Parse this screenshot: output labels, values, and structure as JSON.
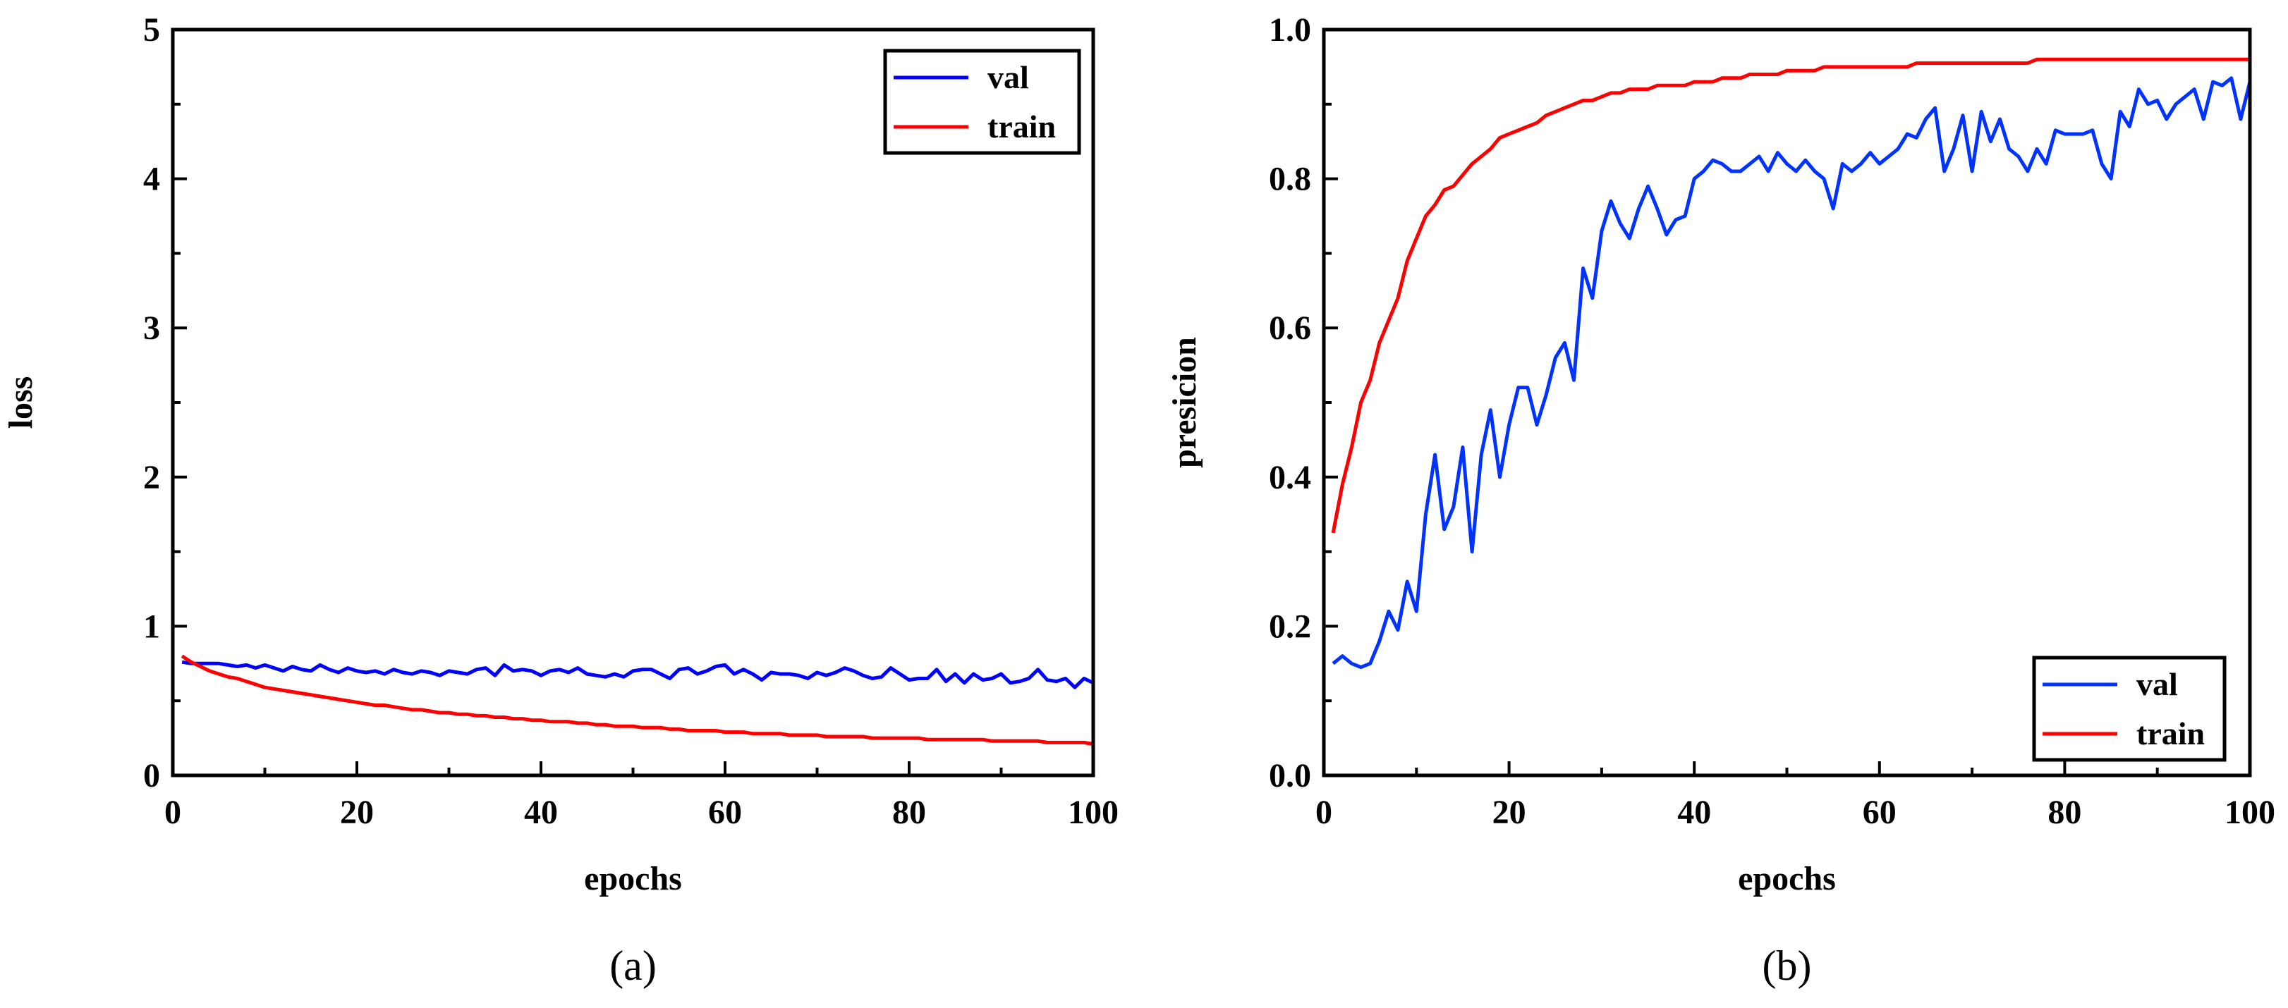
{
  "chart_data": [
    {
      "type": "line",
      "panel_label": "(a)",
      "xlabel": "epochs",
      "ylabel": "loss",
      "xlim": [
        0,
        100
      ],
      "ylim": [
        0,
        5
      ],
      "xticks": [
        0,
        20,
        40,
        60,
        80,
        100
      ],
      "yticks": [
        0,
        1,
        2,
        3,
        4,
        5
      ],
      "xtick_labels": [
        "0",
        "20",
        "40",
        "60",
        "80",
        "100"
      ],
      "ytick_labels": [
        "0",
        "1",
        "2",
        "3",
        "4",
        "5"
      ],
      "legend_position": "top-right",
      "series": [
        {
          "name": "val",
          "color": "#0000ff",
          "x": [
            1,
            2,
            3,
            4,
            5,
            6,
            7,
            8,
            9,
            10,
            11,
            12,
            13,
            14,
            15,
            16,
            17,
            18,
            19,
            20,
            21,
            22,
            23,
            24,
            25,
            26,
            27,
            28,
            29,
            30,
            31,
            32,
            33,
            34,
            35,
            36,
            37,
            38,
            39,
            40,
            41,
            42,
            43,
            44,
            45,
            46,
            47,
            48,
            49,
            50,
            51,
            52,
            53,
            54,
            55,
            56,
            57,
            58,
            59,
            60,
            61,
            62,
            63,
            64,
            65,
            66,
            67,
            68,
            69,
            70,
            71,
            72,
            73,
            74,
            75,
            76,
            77,
            78,
            79,
            80,
            81,
            82,
            83,
            84,
            85,
            86,
            87,
            88,
            89,
            90,
            91,
            92,
            93,
            94,
            95,
            96,
            97,
            98,
            99,
            100
          ],
          "values": [
            0.76,
            0.75,
            0.75,
            0.75,
            0.75,
            0.74,
            0.73,
            0.74,
            0.72,
            0.74,
            0.72,
            0.7,
            0.73,
            0.71,
            0.7,
            0.74,
            0.71,
            0.69,
            0.72,
            0.7,
            0.69,
            0.7,
            0.68,
            0.71,
            0.69,
            0.68,
            0.7,
            0.69,
            0.67,
            0.7,
            0.69,
            0.68,
            0.71,
            0.72,
            0.67,
            0.74,
            0.7,
            0.71,
            0.7,
            0.67,
            0.7,
            0.71,
            0.69,
            0.72,
            0.68,
            0.67,
            0.66,
            0.68,
            0.66,
            0.7,
            0.71,
            0.71,
            0.68,
            0.65,
            0.71,
            0.72,
            0.68,
            0.7,
            0.73,
            0.74,
            0.68,
            0.71,
            0.68,
            0.64,
            0.69,
            0.68,
            0.68,
            0.67,
            0.65,
            0.69,
            0.67,
            0.69,
            0.72,
            0.7,
            0.67,
            0.65,
            0.66,
            0.72,
            0.68,
            0.64,
            0.65,
            0.65,
            0.71,
            0.63,
            0.68,
            0.62,
            0.68,
            0.64,
            0.65,
            0.68,
            0.62,
            0.63,
            0.65,
            0.71,
            0.64,
            0.63,
            0.65,
            0.59,
            0.65,
            0.62
          ]
        },
        {
          "name": "train",
          "color": "#ff0000",
          "x": [
            1,
            2,
            3,
            4,
            5,
            6,
            7,
            8,
            9,
            10,
            11,
            12,
            13,
            14,
            15,
            16,
            17,
            18,
            19,
            20,
            21,
            22,
            23,
            24,
            25,
            26,
            27,
            28,
            29,
            30,
            31,
            32,
            33,
            34,
            35,
            36,
            37,
            38,
            39,
            40,
            41,
            42,
            43,
            44,
            45,
            46,
            47,
            48,
            49,
            50,
            51,
            52,
            53,
            54,
            55,
            56,
            57,
            58,
            59,
            60,
            61,
            62,
            63,
            64,
            65,
            66,
            67,
            68,
            69,
            70,
            71,
            72,
            73,
            74,
            75,
            76,
            77,
            78,
            79,
            80,
            81,
            82,
            83,
            84,
            85,
            86,
            87,
            88,
            89,
            90,
            91,
            92,
            93,
            94,
            95,
            96,
            97,
            98,
            99,
            100
          ],
          "values": [
            0.8,
            0.76,
            0.73,
            0.7,
            0.68,
            0.66,
            0.65,
            0.63,
            0.61,
            0.59,
            0.58,
            0.57,
            0.56,
            0.55,
            0.54,
            0.53,
            0.52,
            0.51,
            0.5,
            0.49,
            0.48,
            0.47,
            0.47,
            0.46,
            0.45,
            0.44,
            0.44,
            0.43,
            0.42,
            0.42,
            0.41,
            0.41,
            0.4,
            0.4,
            0.39,
            0.39,
            0.38,
            0.38,
            0.37,
            0.37,
            0.36,
            0.36,
            0.36,
            0.35,
            0.35,
            0.34,
            0.34,
            0.33,
            0.33,
            0.33,
            0.32,
            0.32,
            0.32,
            0.31,
            0.31,
            0.3,
            0.3,
            0.3,
            0.3,
            0.29,
            0.29,
            0.29,
            0.28,
            0.28,
            0.28,
            0.28,
            0.27,
            0.27,
            0.27,
            0.27,
            0.26,
            0.26,
            0.26,
            0.26,
            0.26,
            0.25,
            0.25,
            0.25,
            0.25,
            0.25,
            0.25,
            0.24,
            0.24,
            0.24,
            0.24,
            0.24,
            0.24,
            0.24,
            0.23,
            0.23,
            0.23,
            0.23,
            0.23,
            0.23,
            0.22,
            0.22,
            0.22,
            0.22,
            0.22,
            0.21
          ]
        }
      ]
    },
    {
      "type": "line",
      "panel_label": "(b)",
      "xlabel": "epochs",
      "ylabel": "presicion",
      "xlim": [
        0,
        100
      ],
      "ylim": [
        0,
        1
      ],
      "xticks": [
        0,
        20,
        40,
        60,
        80,
        100
      ],
      "yticks": [
        0,
        0.2,
        0.4,
        0.6,
        0.8,
        1.0
      ],
      "xtick_labels": [
        "0",
        "20",
        "40",
        "60",
        "80",
        "100"
      ],
      "ytick_labels": [
        "0.0",
        "0.2",
        "0.4",
        "0.6",
        "0.8",
        "1.0"
      ],
      "legend_position": "bottom-right",
      "series": [
        {
          "name": "val",
          "color": "#0033ff",
          "x": [
            1,
            2,
            3,
            4,
            5,
            6,
            7,
            8,
            9,
            10,
            11,
            12,
            13,
            14,
            15,
            16,
            17,
            18,
            19,
            20,
            21,
            22,
            23,
            24,
            25,
            26,
            27,
            28,
            29,
            30,
            31,
            32,
            33,
            34,
            35,
            36,
            37,
            38,
            39,
            40,
            41,
            42,
            43,
            44,
            45,
            46,
            47,
            48,
            49,
            50,
            51,
            52,
            53,
            54,
            55,
            56,
            57,
            58,
            59,
            60,
            61,
            62,
            63,
            64,
            65,
            66,
            67,
            68,
            69,
            70,
            71,
            72,
            73,
            74,
            75,
            76,
            77,
            78,
            79,
            80,
            81,
            82,
            83,
            84,
            85,
            86,
            87,
            88,
            89,
            90,
            91,
            92,
            93,
            94,
            95,
            96,
            97,
            98,
            99,
            100
          ],
          "values": [
            0.15,
            0.16,
            0.15,
            0.145,
            0.15,
            0.18,
            0.22,
            0.195,
            0.26,
            0.22,
            0.35,
            0.43,
            0.33,
            0.36,
            0.44,
            0.3,
            0.43,
            0.49,
            0.4,
            0.47,
            0.52,
            0.52,
            0.47,
            0.51,
            0.56,
            0.58,
            0.53,
            0.68,
            0.64,
            0.73,
            0.77,
            0.74,
            0.72,
            0.76,
            0.79,
            0.76,
            0.725,
            0.745,
            0.75,
            0.8,
            0.81,
            0.825,
            0.82,
            0.81,
            0.81,
            0.82,
            0.83,
            0.81,
            0.835,
            0.82,
            0.81,
            0.825,
            0.81,
            0.8,
            0.76,
            0.82,
            0.81,
            0.82,
            0.835,
            0.82,
            0.83,
            0.84,
            0.86,
            0.855,
            0.88,
            0.895,
            0.81,
            0.84,
            0.885,
            0.81,
            0.89,
            0.85,
            0.88,
            0.84,
            0.83,
            0.81,
            0.84,
            0.82,
            0.865,
            0.86,
            0.86,
            0.86,
            0.865,
            0.82,
            0.8,
            0.89,
            0.87,
            0.92,
            0.9,
            0.905,
            0.88,
            0.9,
            0.91,
            0.92,
            0.88,
            0.93,
            0.925,
            0.935,
            0.88,
            0.93
          ]
        },
        {
          "name": "train",
          "color": "#ff0000",
          "x": [
            1,
            2,
            3,
            4,
            5,
            6,
            7,
            8,
            9,
            10,
            11,
            12,
            13,
            14,
            15,
            16,
            17,
            18,
            19,
            20,
            21,
            22,
            23,
            24,
            25,
            26,
            27,
            28,
            29,
            30,
            31,
            32,
            33,
            34,
            35,
            36,
            37,
            38,
            39,
            40,
            41,
            42,
            43,
            44,
            45,
            46,
            47,
            48,
            49,
            50,
            51,
            52,
            53,
            54,
            55,
            56,
            57,
            58,
            59,
            60,
            61,
            62,
            63,
            64,
            65,
            66,
            67,
            68,
            69,
            70,
            71,
            72,
            73,
            74,
            75,
            76,
            77,
            78,
            79,
            80,
            81,
            82,
            83,
            84,
            85,
            86,
            87,
            88,
            89,
            90,
            91,
            92,
            93,
            94,
            95,
            96,
            97,
            98,
            99,
            100
          ],
          "values": [
            0.325,
            0.39,
            0.44,
            0.5,
            0.53,
            0.58,
            0.61,
            0.64,
            0.69,
            0.72,
            0.75,
            0.765,
            0.785,
            0.79,
            0.805,
            0.82,
            0.83,
            0.84,
            0.855,
            0.86,
            0.865,
            0.87,
            0.875,
            0.885,
            0.89,
            0.895,
            0.9,
            0.905,
            0.905,
            0.91,
            0.915,
            0.915,
            0.92,
            0.92,
            0.92,
            0.925,
            0.925,
            0.925,
            0.925,
            0.93,
            0.93,
            0.93,
            0.935,
            0.935,
            0.935,
            0.94,
            0.94,
            0.94,
            0.94,
            0.945,
            0.945,
            0.945,
            0.945,
            0.95,
            0.95,
            0.95,
            0.95,
            0.95,
            0.95,
            0.95,
            0.95,
            0.95,
            0.95,
            0.955,
            0.955,
            0.955,
            0.955,
            0.955,
            0.955,
            0.955,
            0.955,
            0.955,
            0.955,
            0.955,
            0.955,
            0.955,
            0.96,
            0.96,
            0.96,
            0.96,
            0.96,
            0.96,
            0.96,
            0.96,
            0.96,
            0.96,
            0.96,
            0.96,
            0.96,
            0.96,
            0.96,
            0.96,
            0.96,
            0.96,
            0.96,
            0.96,
            0.96,
            0.96,
            0.96,
            0.96
          ]
        }
      ]
    }
  ]
}
